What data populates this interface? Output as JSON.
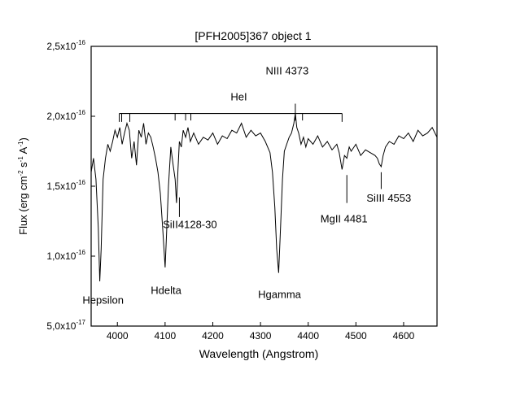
{
  "chart_data": {
    "type": "line",
    "title": "[PFH2005]367 object 1",
    "xlabel": "Wavelength (Angstrom)",
    "ylabel": {
      "prefix": "Flux (erg cm",
      "sup1": "-2",
      "mid1": " s",
      "sup2": "-1",
      "mid2": " A",
      "sup3": "-1",
      "suffix": ")"
    },
    "xlim": [
      3945,
      4670
    ],
    "ylim": [
      5e-17,
      2.5e-16
    ],
    "x_ticks": [
      {
        "value": 4000,
        "label": "4000"
      },
      {
        "value": 4100,
        "label": "4100"
      },
      {
        "value": 4200,
        "label": "4200"
      },
      {
        "value": 4300,
        "label": "4300"
      },
      {
        "value": 4400,
        "label": "4400"
      },
      {
        "value": 4500,
        "label": "4500"
      },
      {
        "value": 4600,
        "label": "4600"
      }
    ],
    "y_ticks": [
      {
        "value": 5e-17,
        "mant": "5,0x10",
        "exp": "-17"
      },
      {
        "value": 1e-16,
        "mant": "1,0x10",
        "exp": "-16"
      },
      {
        "value": 1.5e-16,
        "mant": "1,5x10",
        "exp": "-16"
      },
      {
        "value": 2e-16,
        "mant": "2,0x10",
        "exp": "-16"
      },
      {
        "value": 2.5e-16,
        "mant": "2,5x10",
        "exp": "-16"
      }
    ],
    "series": [
      {
        "name": "spectrum",
        "x": [
          3945,
          3950,
          3955,
          3960,
          3963,
          3966,
          3970,
          3975,
          3980,
          3985,
          3990,
          3995,
          4000,
          4005,
          4010,
          4015,
          4020,
          4025,
          4030,
          4035,
          4040,
          4045,
          4050,
          4055,
          4060,
          4065,
          4070,
          4075,
          4080,
          4085,
          4090,
          4095,
          4100,
          4103,
          4107,
          4112,
          4117,
          4121,
          4124,
          4127,
          4130,
          4134,
          4138,
          4143,
          4148,
          4153,
          4160,
          4170,
          4180,
          4190,
          4200,
          4210,
          4220,
          4230,
          4240,
          4250,
          4260,
          4270,
          4280,
          4290,
          4300,
          4310,
          4320,
          4325,
          4330,
          4334,
          4338,
          4342,
          4346,
          4350,
          4355,
          4360,
          4365,
          4370,
          4373,
          4376,
          4380,
          4385,
          4390,
          4395,
          4400,
          4410,
          4420,
          4430,
          4440,
          4450,
          4460,
          4465,
          4471,
          4476,
          4481,
          4486,
          4490,
          4500,
          4510,
          4520,
          4530,
          4540,
          4545,
          4549,
          4553,
          4557,
          4562,
          4570,
          4580,
          4590,
          4600,
          4610,
          4620,
          4630,
          4640,
          4650,
          4660,
          4670
        ],
        "y": [
          1.6e-16,
          1.7e-16,
          1.55e-16,
          1.2e-16,
          8.2e-17,
          1.05e-16,
          1.55e-16,
          1.7e-16,
          1.8e-16,
          1.75e-16,
          1.82e-16,
          1.9e-16,
          1.85e-16,
          1.92e-16,
          1.8e-16,
          1.88e-16,
          1.95e-16,
          1.9e-16,
          1.7e-16,
          1.82e-16,
          1.65e-16,
          1.9e-16,
          1.85e-16,
          1.95e-16,
          1.8e-16,
          1.88e-16,
          1.85e-16,
          1.78e-16,
          1.7e-16,
          1.6e-16,
          1.45e-16,
          1.2e-16,
          9.2e-17,
          1.15e-16,
          1.5e-16,
          1.78e-16,
          1.65e-16,
          1.55e-16,
          1.38e-16,
          1.62e-16,
          1.82e-16,
          1.78e-16,
          1.9e-16,
          1.85e-16,
          1.92e-16,
          1.82e-16,
          1.88e-16,
          1.8e-16,
          1.85e-16,
          1.83e-16,
          1.88e-16,
          1.8e-16,
          1.86e-16,
          1.84e-16,
          1.9e-16,
          1.88e-16,
          1.95e-16,
          1.85e-16,
          1.9e-16,
          1.86e-16,
          1.88e-16,
          1.82e-16,
          1.74e-16,
          1.6e-16,
          1.35e-16,
          1.05e-16,
          8.8e-17,
          1.2e-16,
          1.55e-16,
          1.75e-16,
          1.8e-16,
          1.85e-16,
          1.88e-16,
          1.95e-16,
          2.02e-16,
          1.92e-16,
          1.88e-16,
          1.8e-16,
          1.85e-16,
          1.78e-16,
          1.84e-16,
          1.8e-16,
          1.86e-16,
          1.78e-16,
          1.82e-16,
          1.76e-16,
          1.8e-16,
          1.74e-16,
          1.62e-16,
          1.72e-16,
          1.7e-16,
          1.78e-16,
          1.75e-16,
          1.8e-16,
          1.72e-16,
          1.76e-16,
          1.74e-16,
          1.72e-16,
          1.7e-16,
          1.66e-16,
          1.64e-16,
          1.72e-16,
          1.78e-16,
          1.82e-16,
          1.8e-16,
          1.86e-16,
          1.84e-16,
          1.88e-16,
          1.82e-16,
          1.9e-16,
          1.86e-16,
          1.88e-16,
          1.92e-16,
          1.85e-16
        ]
      }
    ],
    "annotations": {
      "hei_bracket": {
        "label": "HeI",
        "x_start": 4004,
        "x_end": 4471,
        "y_value": 2.02e-16,
        "ticks": [
          {
            "x": 4004,
            "to": 1.96e-16
          },
          {
            "x": 4009,
            "to": 1.96e-16
          },
          {
            "x": 4026,
            "to": 1.96e-16
          },
          {
            "x": 4121,
            "to": 1.97e-16
          },
          {
            "x": 4143,
            "to": 1.97e-16
          },
          {
            "x": 4154,
            "to": 1.97e-16
          },
          {
            "x": 4388,
            "to": 1.97e-16
          },
          {
            "x": 4471,
            "to": 1.96e-16
          }
        ]
      },
      "niii": {
        "label": "NIII 4373",
        "x": 4373,
        "y_text": 2.3e-16,
        "line_top": 2.09e-16,
        "line_bottom": 2.05e-16
      },
      "balmer": [
        {
          "label": "Hepsilon",
          "x": 3970,
          "y_text": 6.6e-17
        },
        {
          "label": "Hdelta",
          "x": 4102,
          "y_text": 7.3e-17
        },
        {
          "label": "Hgamma",
          "x": 4340,
          "y_text": 7e-17
        }
      ],
      "metal_lines": [
        {
          "label": "SiII4128-30",
          "x": 4130,
          "line_top": 1.42e-16,
          "line_bottom": 1.28e-16,
          "text_x": 4152,
          "text_y": 1.2e-16
        },
        {
          "label": "MgII 4481",
          "x": 4481,
          "line_top": 1.58e-16,
          "line_bottom": 1.38e-16,
          "text_x": 4475,
          "text_y": 1.24e-16
        },
        {
          "label": "SiIII 4553",
          "x": 4553,
          "line_top": 1.6e-16,
          "line_bottom": 1.48e-16,
          "text_x": 4569,
          "text_y": 1.39e-16
        }
      ]
    }
  }
}
